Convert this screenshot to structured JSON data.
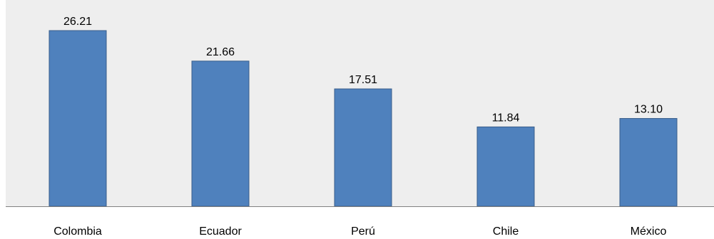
{
  "chart_data": {
    "type": "bar",
    "categories": [
      "Colombia",
      "Ecuador",
      "Perú",
      "Chile",
      "México"
    ],
    "values": [
      26.21,
      21.66,
      17.51,
      11.84,
      13.1
    ],
    "data_labels": [
      "26.21",
      "21.66",
      "17.51",
      "11.84",
      "13.10"
    ],
    "title": "",
    "xlabel": "",
    "ylabel": "",
    "grid": false,
    "legend": "none",
    "colors": {
      "plot_background": "#EEEEEE",
      "bar_fill": "#4F81BD",
      "bar_stroke": "#385D8A",
      "axis": "#808080"
    }
  }
}
